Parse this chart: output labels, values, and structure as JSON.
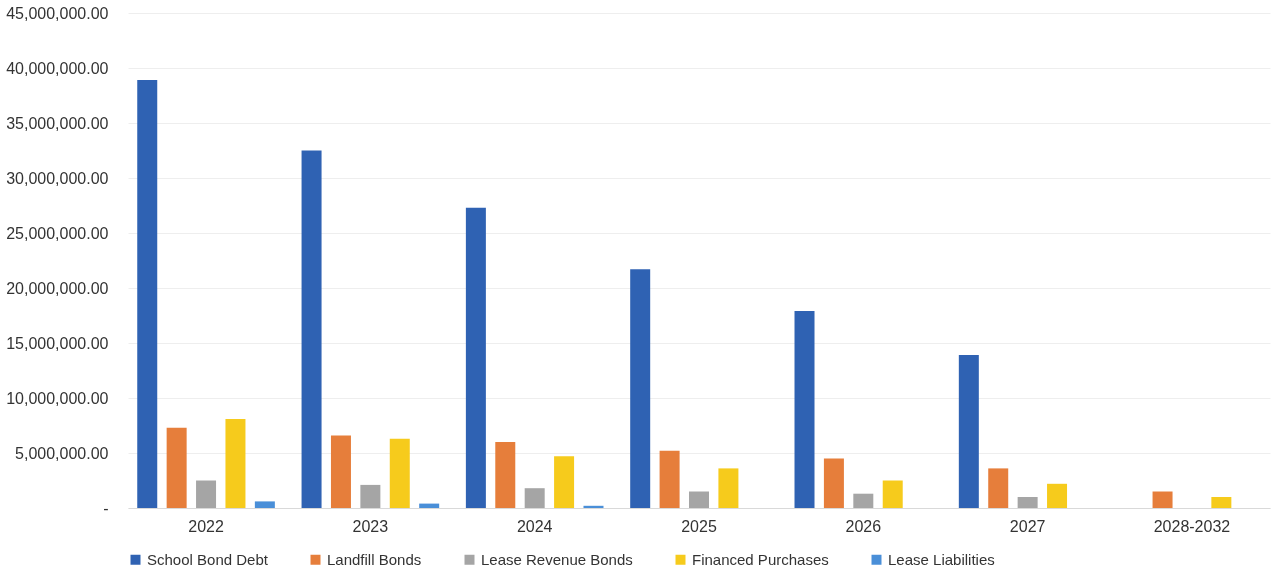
{
  "chart_data": {
    "type": "bar",
    "categories": [
      "2022",
      "2023",
      "2024",
      "2025",
      "2026",
      "2027",
      "2028-2032"
    ],
    "series": [
      {
        "name": "School Bond Debt",
        "color": "#2f62b3",
        "values": [
          38900000,
          32500000,
          27300000,
          21700000,
          17900000,
          13900000,
          null
        ]
      },
      {
        "name": "Landfill Bonds",
        "color": "#e67e3b",
        "values": [
          7300000,
          6600000,
          6000000,
          5200000,
          4500000,
          3600000,
          1500000
        ]
      },
      {
        "name": "Lease Revenue Bonds",
        "color": "#a5a5a5",
        "values": [
          2500000,
          2100000,
          1800000,
          1500000,
          1300000,
          1000000,
          null
        ]
      },
      {
        "name": "Financed Purchases",
        "color": "#f6cb1c",
        "values": [
          8100000,
          6300000,
          4700000,
          3600000,
          2500000,
          2200000,
          1000000
        ]
      },
      {
        "name": "Lease Liabilities",
        "color": "#4a8fd8",
        "values": [
          600000,
          400000,
          200000,
          null,
          null,
          null,
          null
        ]
      }
    ],
    "ylim": [
      0,
      45000000
    ],
    "yticks": [
      {
        "value": 0,
        "label": "-"
      },
      {
        "value": 5000000,
        "label": "5,000,000.00"
      },
      {
        "value": 10000000,
        "label": "10,000,000.00"
      },
      {
        "value": 15000000,
        "label": "15,000,000.00"
      },
      {
        "value": 20000000,
        "label": "20,000,000.00"
      },
      {
        "value": 25000000,
        "label": "25,000,000.00"
      },
      {
        "value": 30000000,
        "label": "30,000,000.00"
      },
      {
        "value": 35000000,
        "label": "35,000,000.00"
      },
      {
        "value": 40000000,
        "label": "40,000,000.00"
      },
      {
        "value": 45000000,
        "label": "45,000,000.00"
      }
    ],
    "grid": "y",
    "legend": "bottom"
  }
}
